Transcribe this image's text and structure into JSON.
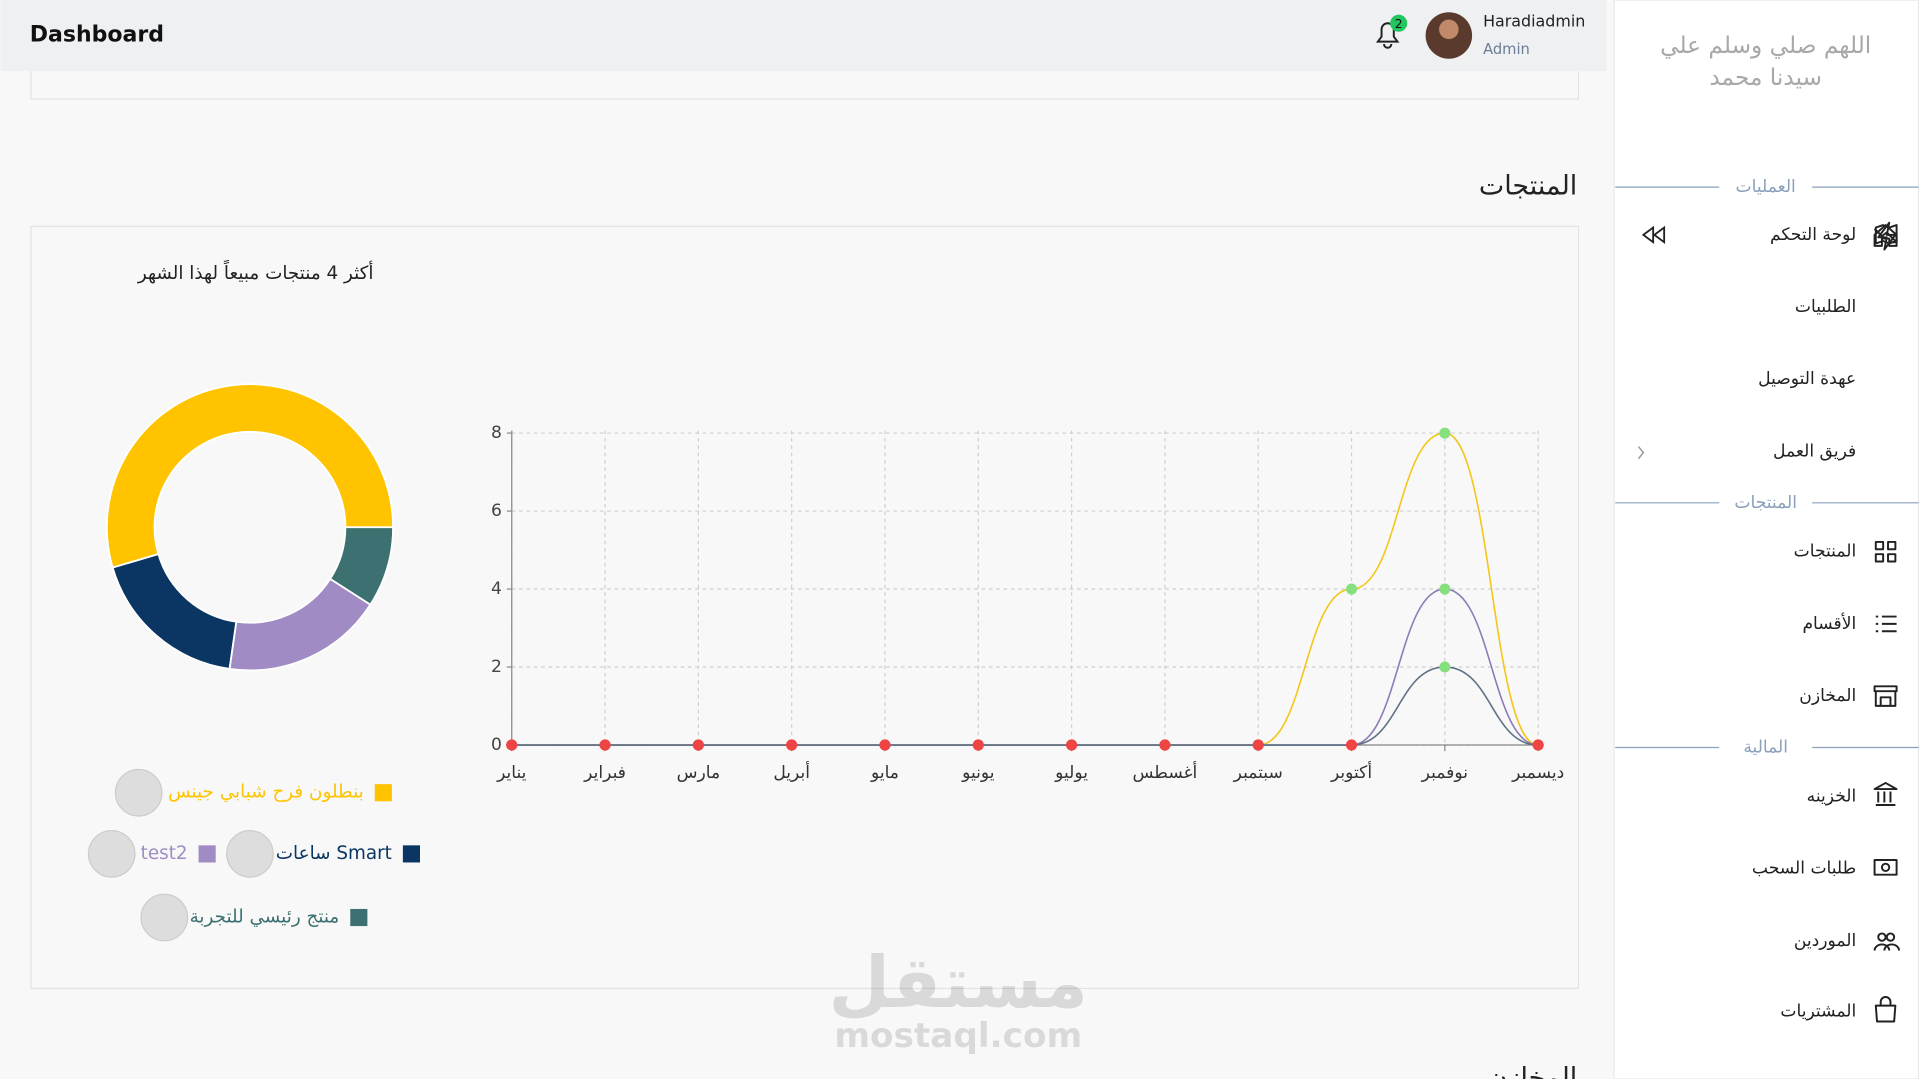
{
  "header": {
    "title": "Dashboard",
    "notifications": "2",
    "user_name": "Haradiadmin",
    "user_role": "Admin"
  },
  "sidebar": {
    "dua": [
      "اللهم صلي وسلم علي",
      "سيدنا محمد"
    ],
    "sections": [
      {
        "title": "العمليات",
        "items": [
          "لوحة التحكم",
          "الطلبيات",
          "عهدة التوصيل",
          "فريق العمل"
        ]
      },
      {
        "title": "المنتجات",
        "items": [
          "المنتجات",
          "الأقسام",
          "المخازن"
        ]
      },
      {
        "title": "المالية",
        "items": [
          "الخزينه",
          "طلبات السحب",
          "الموردين",
          "المشتريات"
        ]
      }
    ]
  },
  "section_title": "المنتجات",
  "next_section_title": "المخازن",
  "watermark": {
    "ar": "مستقل",
    "en": "mostaql.com"
  },
  "chart_title": "أكثر 4 منتجات مبيعاً لهذا الشهر",
  "chart_data": [
    {
      "type": "line",
      "categories": [
        "يناير",
        "فبراير",
        "مارس",
        "أبريل",
        "مايو",
        "يونيو",
        "يوليو",
        "أغسطس",
        "سبتمبر",
        "أكتوبر",
        "نوفمبر",
        "ديسمبر"
      ],
      "series": [
        {
          "color": "#f5c518",
          "values": [
            0,
            0,
            0,
            0,
            0,
            0,
            0,
            0,
            0,
            4,
            8,
            0
          ]
        },
        {
          "color": "#8b7cb8",
          "values": [
            0,
            0,
            0,
            0,
            0,
            0,
            0,
            0,
            0,
            0,
            4,
            0
          ]
        },
        {
          "color": "#5f7285",
          "values": [
            0,
            0,
            0,
            0,
            0,
            0,
            0,
            0,
            0,
            0,
            2,
            0
          ]
        }
      ],
      "ylim": [
        0,
        8
      ],
      "yticks": [
        0,
        2,
        4,
        6,
        8
      ],
      "grid": true,
      "marker_color": "#ef4444",
      "highlight_marker_color": "#86e07e"
    },
    {
      "type": "pie",
      "donut": true,
      "categories": [
        "بنطلون فرح شبابي جينس",
        "ساعات Smart",
        "test2",
        "منتج رئيسي للتجربة"
      ],
      "values": [
        6,
        2,
        2,
        1
      ],
      "colors": [
        "#ffc300",
        "#0b3563",
        "#a08bc4",
        "#3d7070"
      ]
    }
  ]
}
